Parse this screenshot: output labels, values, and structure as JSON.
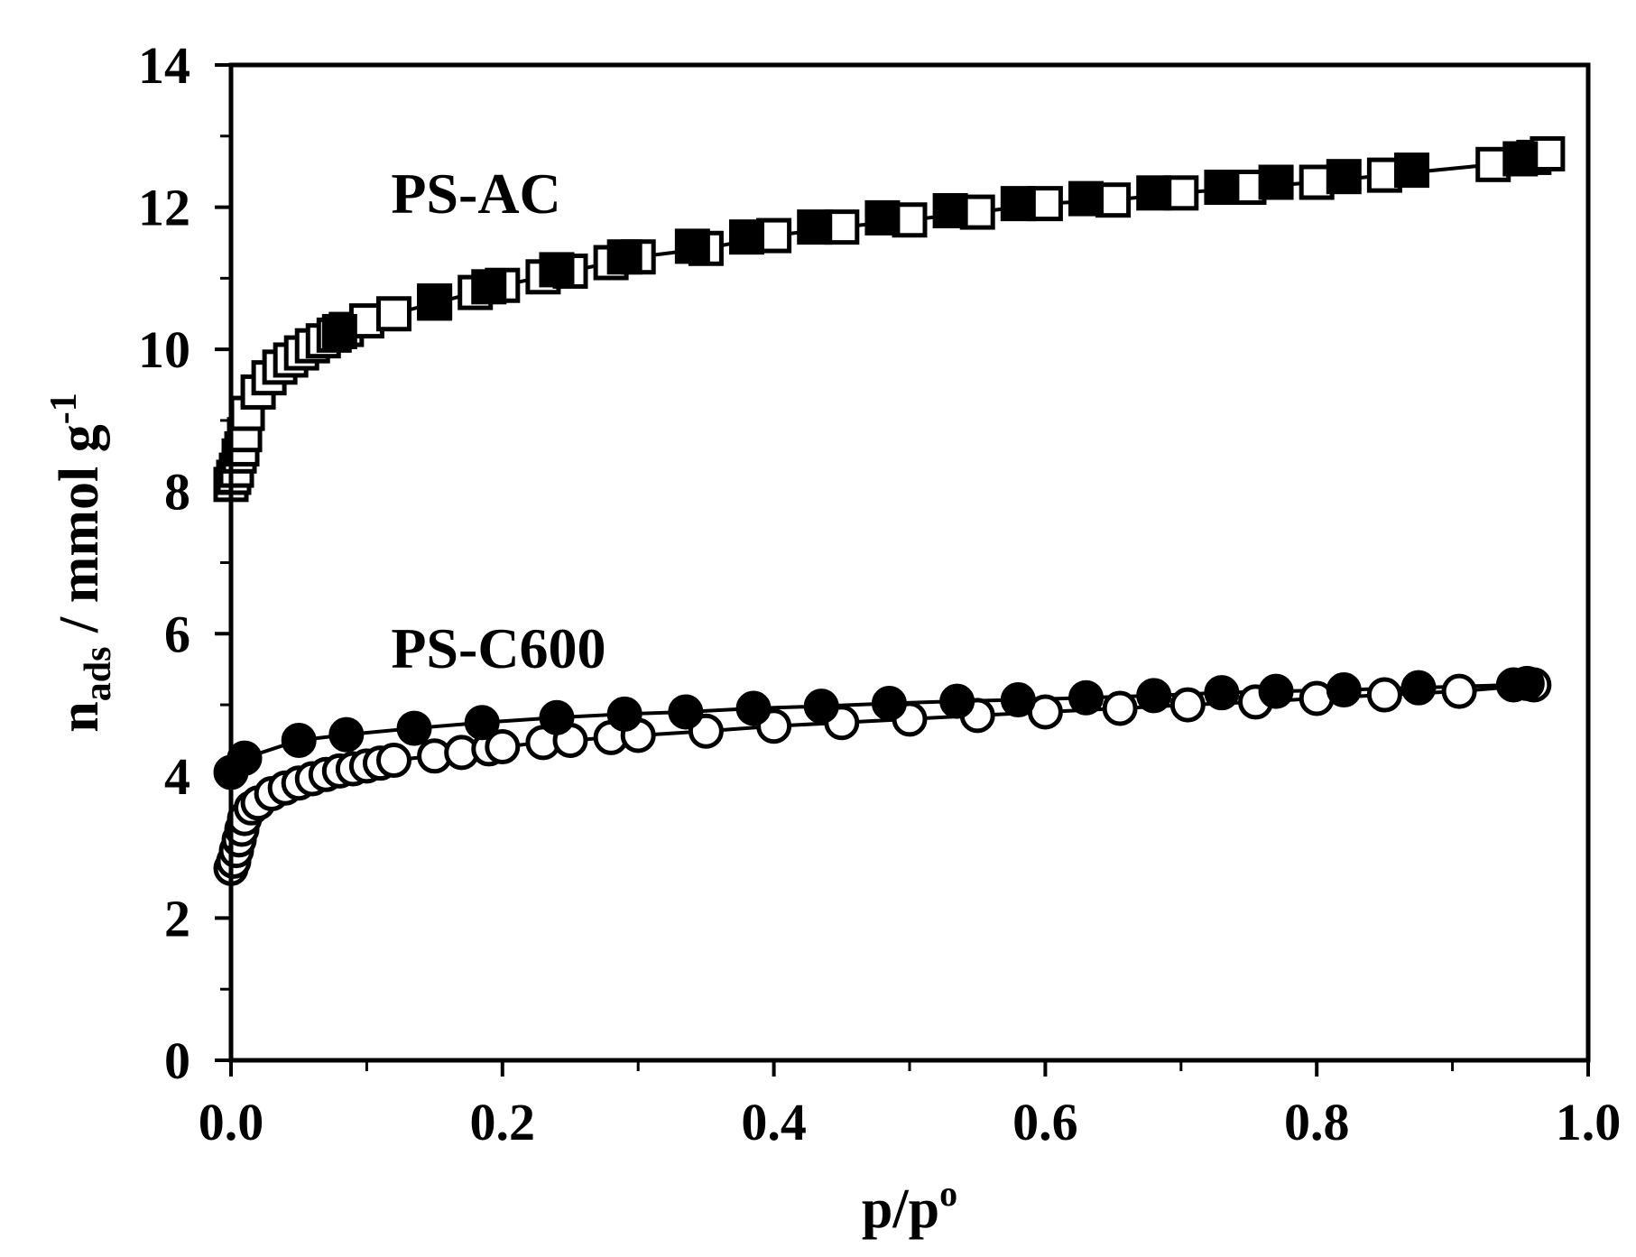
{
  "chart_data": {
    "type": "scatter",
    "xlim": [
      0.0,
      1.0
    ],
    "ylim": [
      0,
      14
    ],
    "x_ticks": [
      "0.0",
      "0.2",
      "0.4",
      "0.6",
      "0.8",
      "1.0"
    ],
    "y_ticks": [
      "0",
      "2",
      "4",
      "6",
      "8",
      "10",
      "12",
      "14"
    ],
    "xlabel": {
      "base": "p/p",
      "sup": "o"
    },
    "ylabel": {
      "base": "n",
      "sub": "ads",
      "mid": " / mmol g",
      "sup": "-1"
    },
    "grid": false,
    "annotations": [
      {
        "text": "PS-AC",
        "x": 0.08,
        "y": 12.2
      },
      {
        "text": "PS-C600",
        "x": 0.08,
        "y": 5.8
      }
    ],
    "series": [
      {
        "group": "PS-AC",
        "marker": "square",
        "fill": "open",
        "connect": true,
        "x": [
          0.0,
          0.002,
          0.004,
          0.006,
          0.008,
          0.01,
          0.012,
          0.02,
          0.028,
          0.036,
          0.044,
          0.052,
          0.06,
          0.068,
          0.076,
          0.085,
          0.1,
          0.12,
          0.15,
          0.18,
          0.2,
          0.23,
          0.25,
          0.28,
          0.3,
          0.35,
          0.4,
          0.45,
          0.5,
          0.55,
          0.6,
          0.65,
          0.7,
          0.75,
          0.8,
          0.85,
          0.93,
          0.96,
          0.97
        ],
        "y": [
          8.1,
          8.2,
          8.3,
          8.5,
          8.6,
          8.8,
          9.1,
          9.4,
          9.6,
          9.75,
          9.85,
          9.95,
          10.05,
          10.12,
          10.2,
          10.28,
          10.4,
          10.5,
          10.65,
          10.8,
          10.9,
          11.02,
          11.1,
          11.22,
          11.3,
          11.42,
          11.6,
          11.72,
          11.82,
          11.93,
          12.05,
          12.1,
          12.2,
          12.28,
          12.35,
          12.45,
          12.6,
          12.7,
          12.75
        ]
      },
      {
        "group": "PS-AC",
        "marker": "square",
        "fill": "filled",
        "connect": false,
        "x": [
          0.08,
          0.15,
          0.19,
          0.24,
          0.29,
          0.34,
          0.38,
          0.43,
          0.48,
          0.53,
          0.58,
          0.63,
          0.68,
          0.73,
          0.77,
          0.82,
          0.87,
          0.95
        ],
        "y": [
          10.25,
          10.68,
          10.88,
          11.12,
          11.3,
          11.45,
          11.58,
          11.72,
          11.85,
          11.95,
          12.05,
          12.12,
          12.2,
          12.28,
          12.35,
          12.43,
          12.52,
          12.68
        ]
      },
      {
        "group": "PS-C600",
        "marker": "circle",
        "fill": "open",
        "connect": true,
        "x": [
          0.0,
          0.002,
          0.004,
          0.006,
          0.008,
          0.01,
          0.015,
          0.02,
          0.03,
          0.04,
          0.05,
          0.06,
          0.07,
          0.08,
          0.09,
          0.1,
          0.11,
          0.12,
          0.15,
          0.17,
          0.19,
          0.2,
          0.23,
          0.25,
          0.28,
          0.3,
          0.35,
          0.4,
          0.45,
          0.5,
          0.55,
          0.6,
          0.655,
          0.705,
          0.755,
          0.8,
          0.85,
          0.905,
          0.96
        ],
        "y": [
          2.7,
          2.8,
          2.95,
          3.1,
          3.25,
          3.4,
          3.55,
          3.62,
          3.75,
          3.83,
          3.9,
          3.96,
          4.02,
          4.07,
          4.1,
          4.14,
          4.18,
          4.22,
          4.28,
          4.33,
          4.38,
          4.41,
          4.47,
          4.5,
          4.54,
          4.57,
          4.63,
          4.7,
          4.75,
          4.8,
          4.85,
          4.9,
          4.95,
          5.0,
          5.04,
          5.09,
          5.14,
          5.19,
          5.28
        ]
      },
      {
        "group": "PS-C600",
        "marker": "circle",
        "fill": "filled",
        "connect": true,
        "x": [
          0.0,
          0.01,
          0.05,
          0.085,
          0.135,
          0.185,
          0.24,
          0.29,
          0.335,
          0.385,
          0.435,
          0.485,
          0.535,
          0.58,
          0.63,
          0.68,
          0.73,
          0.77,
          0.82,
          0.875,
          0.945,
          0.955
        ],
        "y": [
          4.05,
          4.25,
          4.5,
          4.58,
          4.67,
          4.75,
          4.82,
          4.87,
          4.9,
          4.95,
          4.98,
          5.02,
          5.05,
          5.07,
          5.1,
          5.13,
          5.17,
          5.19,
          5.21,
          5.24,
          5.28,
          5.3
        ]
      }
    ]
  }
}
